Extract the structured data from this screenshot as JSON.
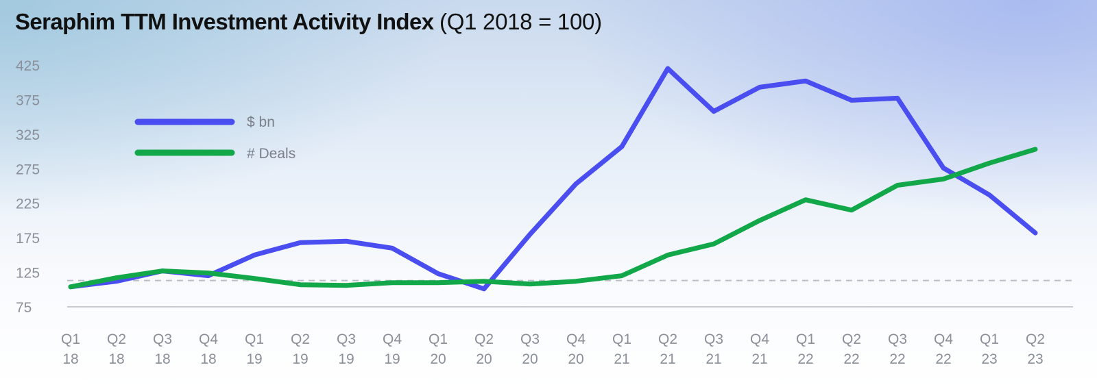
{
  "title": {
    "main": "Seraphim TTM Investment Activity Index",
    "sub": "(Q1 2018 = 100)"
  },
  "colors": {
    "usd_series": "#4a4ef0",
    "deals_series": "#12a84a",
    "axis": "#b5b9c0",
    "reference": "#b8bcc4",
    "tick_text": "#8a8f99"
  },
  "chart_data": {
    "type": "line",
    "title": "Seraphim TTM Investment Activity Index (Q1 2018 = 100)",
    "xlabel": "",
    "ylabel": "",
    "ylim": [
      75,
      425
    ],
    "yticks": [
      "425",
      "375",
      "325",
      "275",
      "225",
      "175",
      "125",
      "75"
    ],
    "legend_position": "top-left",
    "categories": [
      [
        "Q1",
        "18"
      ],
      [
        "Q2",
        "18"
      ],
      [
        "Q3",
        "18"
      ],
      [
        "Q4",
        "18"
      ],
      [
        "Q1",
        "19"
      ],
      [
        "Q2",
        "19"
      ],
      [
        "Q3",
        "19"
      ],
      [
        "Q4",
        "19"
      ],
      [
        "Q1",
        "20"
      ],
      [
        "Q2",
        "20"
      ],
      [
        "Q3",
        "20"
      ],
      [
        "Q4",
        "20"
      ],
      [
        "Q1",
        "21"
      ],
      [
        "Q2",
        "21"
      ],
      [
        "Q3",
        "21"
      ],
      [
        "Q4",
        "21"
      ],
      [
        "Q1",
        "22"
      ],
      [
        "Q2",
        "22"
      ],
      [
        "Q3",
        "22"
      ],
      [
        "Q4",
        "22"
      ],
      [
        "Q1",
        "23"
      ],
      [
        "Q2",
        "23"
      ]
    ],
    "reference_line": 113,
    "series": [
      {
        "name": "$ bn",
        "color": "#4a4ef0",
        "values": [
          104,
          112,
          127,
          120,
          150,
          168,
          170,
          160,
          123,
          101,
          180,
          253,
          307,
          420,
          358,
          393,
          402,
          374,
          377,
          276,
          237,
          182
        ]
      },
      {
        "name": "# Deals",
        "color": "#12a84a",
        "values": [
          104,
          117,
          127,
          124,
          116,
          107,
          106,
          110,
          110,
          112,
          108,
          112,
          120,
          150,
          166,
          200,
          230,
          215,
          251,
          260,
          283,
          303
        ]
      }
    ]
  }
}
